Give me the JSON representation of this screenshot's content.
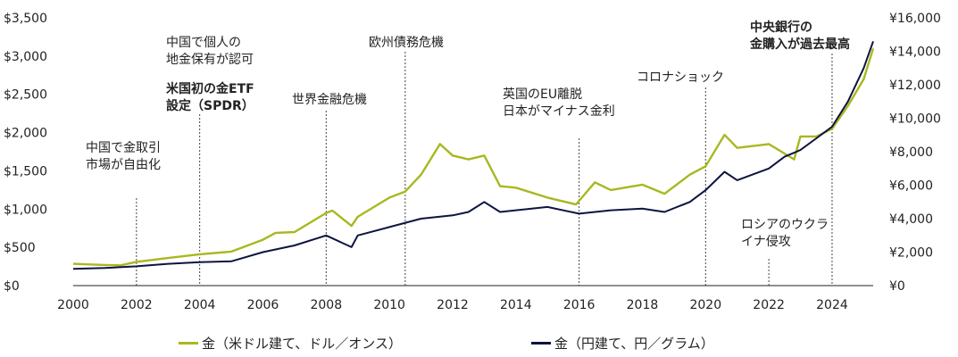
{
  "chart_data": {
    "type": "line",
    "x_range": [
      2000,
      2025.3
    ],
    "x_ticks": [
      "2000",
      "2002",
      "2004",
      "2006",
      "2008",
      "2010",
      "2012",
      "2014",
      "2016",
      "2018",
      "2020",
      "2022",
      "2024"
    ],
    "x_tick_values": [
      2000,
      2002,
      2004,
      2006,
      2008,
      2010,
      2012,
      2014,
      2016,
      2018,
      2020,
      2022,
      2024
    ],
    "y_left": {
      "ylim": [
        0,
        3500
      ],
      "ticks": [
        "$0",
        "$500",
        "$1,000",
        "$1,500",
        "$2,000",
        "$2,500",
        "$3,000",
        "$3,500"
      ],
      "tick_values": [
        0,
        500,
        1000,
        1500,
        2000,
        2500,
        3000,
        3500
      ]
    },
    "y_right": {
      "ylim": [
        0,
        16000
      ],
      "ticks": [
        "¥0",
        "¥2,000",
        "¥4,000",
        "¥6,000",
        "¥8,000",
        "¥10,000",
        "¥12,000",
        "¥14,000",
        "¥16,000"
      ],
      "tick_values": [
        0,
        2000,
        4000,
        6000,
        8000,
        10000,
        12000,
        14000,
        16000
      ]
    },
    "series": [
      {
        "name": "金（米ドル建て、ドル／オンス）",
        "axis": "left",
        "color": "#a8b820",
        "x": [
          2000,
          2001,
          2001.5,
          2002,
          2003,
          2004,
          2005,
          2006,
          2006.4,
          2007,
          2008,
          2008.2,
          2008.8,
          2009,
          2010,
          2010.5,
          2011,
          2011.6,
          2012,
          2012.5,
          2013,
          2013.5,
          2014,
          2015,
          2015.9,
          2016.5,
          2017,
          2018,
          2018.7,
          2019.5,
          2020,
          2020.6,
          2021,
          2022,
          2022.8,
          2023,
          2023.5,
          2024,
          2024.5,
          2025,
          2025.3
        ],
        "y": [
          285,
          270,
          265,
          310,
          360,
          410,
          445,
          600,
          690,
          700,
          950,
          980,
          780,
          900,
          1150,
          1230,
          1450,
          1850,
          1700,
          1650,
          1700,
          1300,
          1280,
          1150,
          1060,
          1350,
          1250,
          1320,
          1200,
          1450,
          1560,
          1970,
          1800,
          1850,
          1650,
          1950,
          1950,
          2050,
          2350,
          2700,
          3100
        ]
      },
      {
        "name": "金（円建て、円／グラム）",
        "axis": "right",
        "color": "#0d1440",
        "x": [
          2000,
          2001,
          2002,
          2003,
          2004,
          2005,
          2006,
          2007,
          2008,
          2008.8,
          2009,
          2010,
          2011,
          2012,
          2012.5,
          2013,
          2013.5,
          2014,
          2015,
          2016,
          2017,
          2018,
          2018.7,
          2019.5,
          2020,
          2020.6,
          2021,
          2022,
          2022.5,
          2023,
          2023.5,
          2024,
          2024.5,
          2025,
          2025.3
        ],
        "y": [
          1000,
          1050,
          1150,
          1300,
          1400,
          1450,
          2000,
          2400,
          3000,
          2300,
          3000,
          3500,
          4000,
          4200,
          4400,
          5000,
          4400,
          4500,
          4700,
          4300,
          4500,
          4600,
          4400,
          5000,
          5700,
          6800,
          6300,
          7000,
          7700,
          8100,
          8800,
          9500,
          11000,
          13000,
          14600
        ]
      }
    ],
    "annotations": [
      {
        "lines": [
          "中国で金取引",
          "市場が自由化"
        ],
        "x": 2002,
        "bold": false
      },
      {
        "lines": [
          "中国で個人の",
          "地金保有が認可"
        ],
        "x": 2004,
        "bold": false
      },
      {
        "lines": [
          "米国初の金ETF",
          "設定（SPDR）"
        ],
        "x": 2004,
        "bold": true
      },
      {
        "lines": [
          "世界金融危機"
        ],
        "x": 2008,
        "bold": false
      },
      {
        "lines": [
          "欧州債務危機"
        ],
        "x": 2010.5,
        "bold": false
      },
      {
        "lines": [
          "英国のEU離脱",
          "日本がマイナス金利"
        ],
        "x": 2016,
        "bold": false
      },
      {
        "lines": [
          "コロナショック"
        ],
        "x": 2020,
        "bold": false
      },
      {
        "lines": [
          "ロシアのウクラ",
          "イナ侵攻"
        ],
        "x": 2022,
        "bold": false
      },
      {
        "lines": [
          "中央銀行の",
          "金購入が過去最高"
        ],
        "x": 2024,
        "bold": true
      }
    ]
  }
}
